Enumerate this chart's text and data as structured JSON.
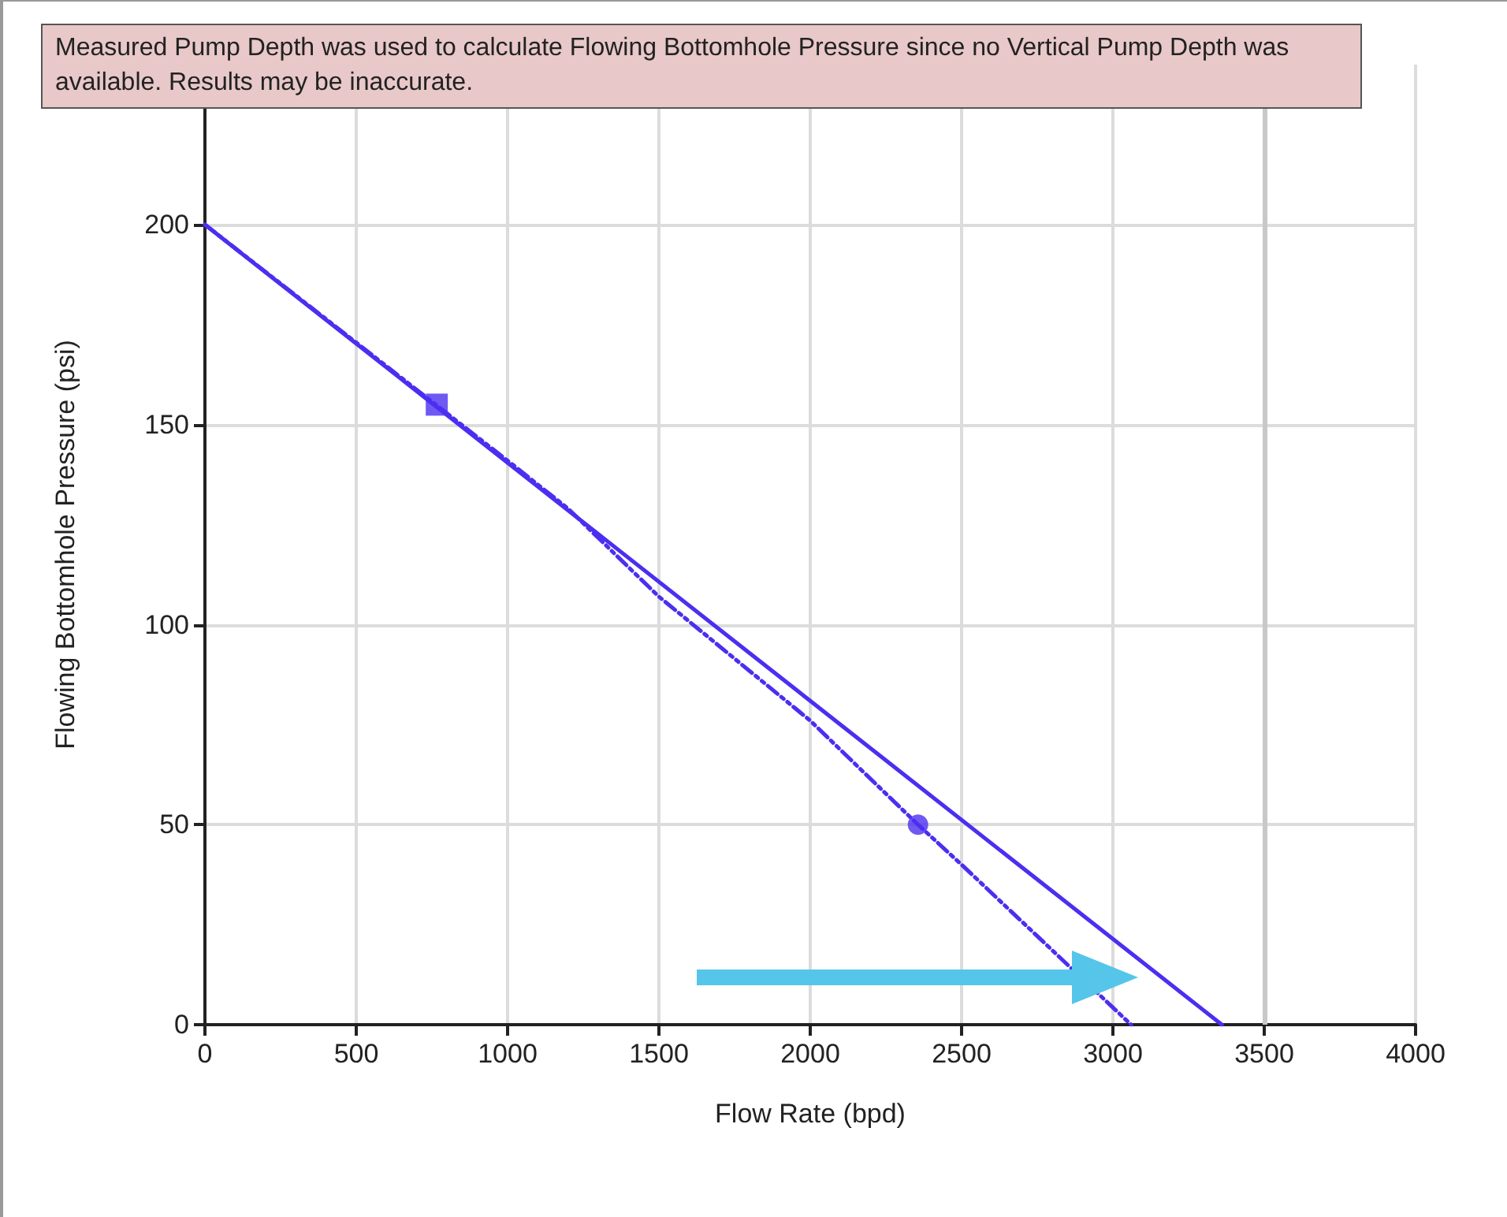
{
  "chart_data": {
    "type": "line",
    "xlabel": "Flow Rate (bpd)",
    "ylabel": "Flowing Bottomhole Pressure (psi)",
    "annotations": [
      "Measured Pump Depth was used to calculate Flowing Bottomhole Pressure since no Vertical Pump Depth was available. Results may be inaccurate."
    ],
    "xlim": [
      0,
      4000
    ],
    "xticks": [
      0,
      500,
      1000,
      1500,
      2000,
      2500,
      3000,
      3500,
      4000
    ],
    "ylim": [
      0,
      240
    ],
    "yticks": [
      0,
      50,
      100,
      150,
      200
    ],
    "grid": true,
    "series": [
      {
        "color": "#4b2ff0",
        "line_style": "solid",
        "marker": "none",
        "x": [
          0,
          3360
        ],
        "values": [
          200,
          0
        ]
      },
      {
        "color": "#4b2ff0",
        "line_style": "dashed",
        "marker": "none",
        "x": [
          0,
          1000,
          1200,
          1500,
          2000,
          2356,
          2500,
          3060
        ],
        "values": [
          200,
          141,
          129,
          107,
          76,
          50,
          40,
          0
        ]
      },
      {
        "type": "scatter",
        "color": "#4b2ff0",
        "marker": "square",
        "x": [
          766
        ],
        "values": [
          155
        ]
      },
      {
        "type": "scatter",
        "color": "#4b2ff0",
        "marker": "circle",
        "x": [
          2356
        ],
        "values": [
          50
        ]
      }
    ],
    "ref_lines": [
      {
        "axis": "x",
        "value": 3500,
        "color": "#c8c8c8"
      }
    ]
  }
}
